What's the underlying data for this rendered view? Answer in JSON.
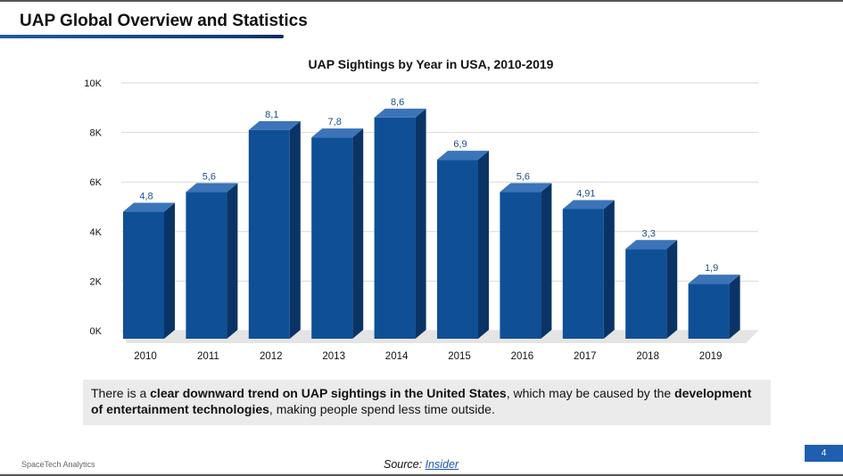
{
  "page": {
    "title": "UAP Global Overview and Statistics",
    "brand": "SpaceTech Analytics",
    "page_number": "4",
    "source_prefix": "Source: ",
    "source_link": "Insider"
  },
  "note": {
    "t1": "There is a ",
    "b1": "clear downward trend on UAP sightings in the United States",
    "t2": ", which may be caused by the ",
    "b2": "development of entertainment technologies",
    "t3": ", making people spend less time outside."
  },
  "colors": {
    "bar_front": "#0f4f96",
    "bar_top": "#3b74b8",
    "bar_side": "#0a3466",
    "label": "#1f4e8a",
    "floor": "#e4e4e4",
    "grid": "#d9d9d9"
  },
  "chart_data": {
    "type": "bar",
    "title": "UAP Sightings by Year in USA, 2010-2019",
    "categories": [
      "2010",
      "2011",
      "2012",
      "2013",
      "2014",
      "2015",
      "2016",
      "2017",
      "2018",
      "2019"
    ],
    "values": [
      4.8,
      5.6,
      8.1,
      7.8,
      8.6,
      6.9,
      5.6,
      4.91,
      3.3,
      1.9
    ],
    "data_labels": [
      "4,8",
      "5,6",
      "8,1",
      "7,8",
      "8,6",
      "6,9",
      "5,6",
      "4,91",
      "3,3",
      "1,9"
    ],
    "y_ticks": [
      "0K",
      "2K",
      "4K",
      "6K",
      "8K",
      "10K"
    ],
    "ylim": [
      0,
      10
    ],
    "xlabel": "",
    "ylabel": "",
    "grid": true,
    "three_d": true
  }
}
